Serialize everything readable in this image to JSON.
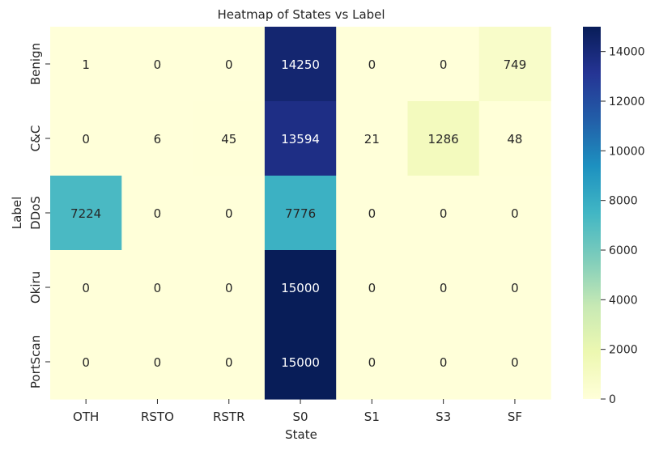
{
  "chart_data": {
    "type": "heatmap",
    "title": "Heatmap of States vs Label",
    "xlabel": "State",
    "ylabel": "Label",
    "x_categories": [
      "OTH",
      "RSTO",
      "RSTR",
      "S0",
      "S1",
      "S3",
      "SF"
    ],
    "y_categories": [
      "Benign",
      "C&C",
      "DDoS",
      "Okiru",
      "PortScan"
    ],
    "values": [
      [
        1,
        0,
        0,
        14250,
        0,
        0,
        749
      ],
      [
        0,
        6,
        45,
        13594,
        21,
        1286,
        48
      ],
      [
        7224,
        0,
        0,
        7776,
        0,
        0,
        0
      ],
      [
        0,
        0,
        0,
        15000,
        0,
        0,
        0
      ],
      [
        0,
        0,
        0,
        15000,
        0,
        0,
        0
      ]
    ],
    "colorbar": {
      "colormap": "YlGnBu",
      "range": [
        0,
        15000
      ],
      "ticks": [
        0,
        2000,
        4000,
        6000,
        8000,
        10000,
        12000,
        14000
      ]
    },
    "annotations": true,
    "grid": false
  }
}
